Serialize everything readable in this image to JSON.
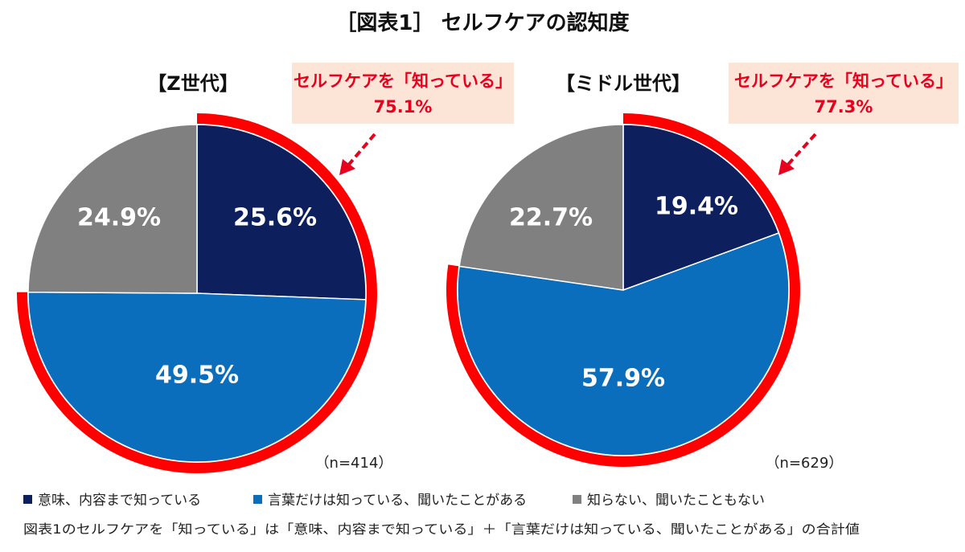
{
  "title": "［図表1］ セルフケアの認知度",
  "colors": {
    "dark_navy": "#0d1f5c",
    "blue": "#0a6ebd",
    "gray": "#808080",
    "highlight_red": "#ff0000",
    "callout_bg": "#fce4d6",
    "callout_text": "#e8001c"
  },
  "legend": [
    {
      "label": "意味、内容まで知っている",
      "color": "#0d1f5c"
    },
    {
      "label": "言葉だけは知っている、聞いたことがある",
      "color": "#0a6ebd"
    },
    {
      "label": "知らない、聞いたこともない",
      "color": "#808080"
    }
  ],
  "note": "図表1のセルフケアを「知っている」は「意味、内容まで知っている」＋「言葉だけは知っている、聞いたことがある」の合計値",
  "chart_data": [
    {
      "type": "pie",
      "title": "【Z世代】",
      "n": "（n=414）",
      "categories": [
        "意味、内容まで知っている",
        "言葉だけは知っている、聞いたことがある",
        "知らない、聞いたこともない"
      ],
      "values": [
        25.6,
        49.5,
        24.9
      ],
      "labels": [
        "25.6%",
        "49.5%",
        "24.9%"
      ],
      "highlight": {
        "text_line1": "セルフケアを「知っている」",
        "text_line2": "75.1%",
        "value": 75.1
      }
    },
    {
      "type": "pie",
      "title": "【ミドル世代】",
      "n": "（n=629）",
      "categories": [
        "意味、内容まで知っている",
        "言葉だけは知っている、聞いたことがある",
        "知らない、聞いたこともない"
      ],
      "values": [
        19.4,
        57.9,
        22.7
      ],
      "labels": [
        "19.4%",
        "57.9%",
        "22.7%"
      ],
      "highlight": {
        "text_line1": "セルフケアを「知っている」",
        "text_line2": "77.3%",
        "value": 77.3
      }
    }
  ]
}
